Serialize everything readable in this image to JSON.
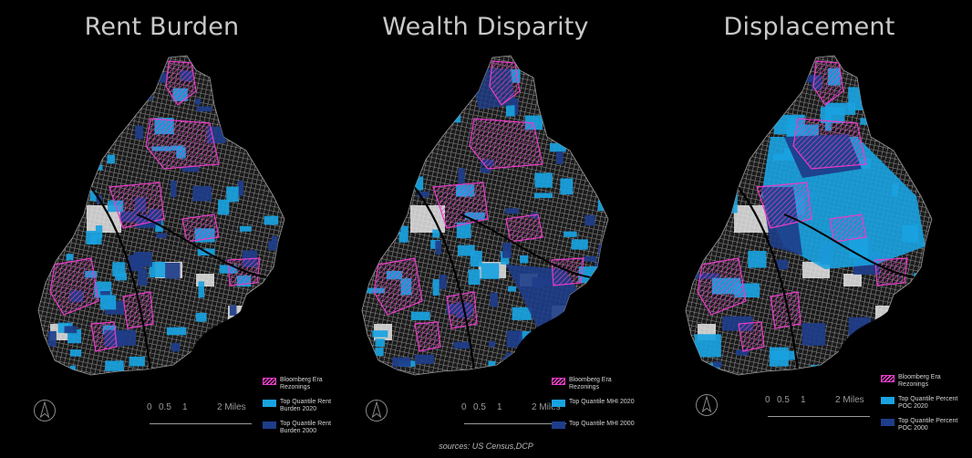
{
  "panels": [
    {
      "title": "Rent Burden",
      "legend": [
        {
          "label": "Bloomberg Era Rezonings",
          "swatch": "hatch"
        },
        {
          "label": "Top Quantile Rent Burden 2020",
          "swatch": "light",
          "color": "#19a2e0"
        },
        {
          "label": "Top Quantile Rent Burden 2000",
          "swatch": "dark",
          "color": "#1e3d8a"
        }
      ]
    },
    {
      "title": "Wealth Disparity",
      "legend": [
        {
          "label": "Bloomberg Era Rezonings",
          "swatch": "hatch"
        },
        {
          "label": "Top Quantile MHI 2020",
          "swatch": "light",
          "color": "#19a2e0"
        },
        {
          "label": "Top Quantile MHI 2000",
          "swatch": "dark",
          "color": "#1e3d8a"
        }
      ]
    },
    {
      "title": "Displacement",
      "legend": [
        {
          "label": "Bloomberg Era Rezonings",
          "swatch": "hatch"
        },
        {
          "label": "Top Quantile Percent POC 2020",
          "swatch": "light",
          "color": "#19a2e0"
        },
        {
          "label": "Top Quantile Percent POC 2000",
          "swatch": "dark",
          "color": "#1e3d8a"
        }
      ]
    }
  ],
  "scalebar": {
    "labels": [
      "0",
      "0.5",
      "1",
      "2 Miles"
    ]
  },
  "north_arrow_icon": "north-arrow-icon",
  "source": "sources: US Census,DCP",
  "colors": {
    "background": "#000000",
    "rezoning": "#e83cc8",
    "quantile_2020": "#19a2e0",
    "quantile_2000": "#1e3d8a",
    "base_streets": "#8c8c8c",
    "parks": "#e6e6e6"
  }
}
